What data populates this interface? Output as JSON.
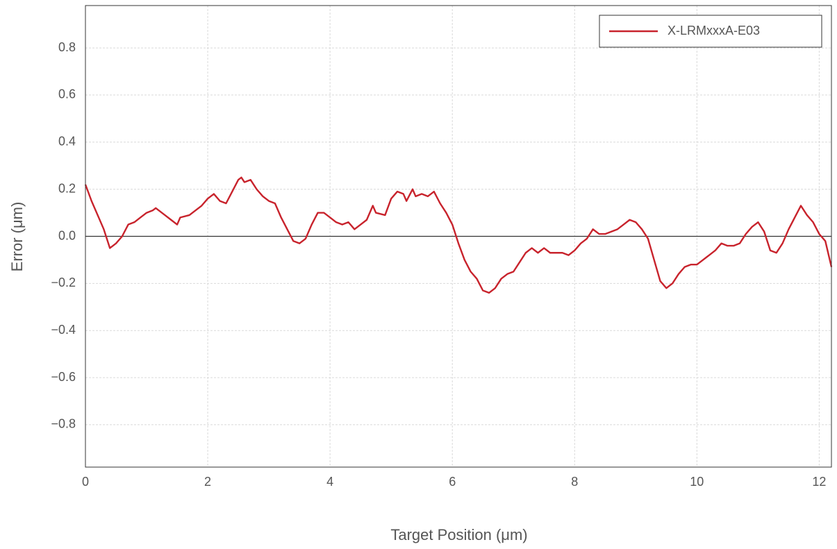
{
  "chart_data": {
    "type": "line",
    "xlabel": "Target Position (μm)",
    "ylabel": "Error (μm)",
    "x": [
      0,
      0.1,
      0.2,
      0.3,
      0.4,
      0.5,
      0.6,
      0.7,
      0.8,
      0.9,
      1.0,
      1.1,
      1.15,
      1.3,
      1.4,
      1.5,
      1.55,
      1.7,
      1.8,
      1.9,
      2.0,
      2.1,
      2.2,
      2.3,
      2.4,
      2.5,
      2.55,
      2.6,
      2.7,
      2.8,
      2.9,
      3.0,
      3.1,
      3.2,
      3.3,
      3.4,
      3.5,
      3.6,
      3.7,
      3.8,
      3.9,
      4.0,
      4.1,
      4.2,
      4.3,
      4.4,
      4.5,
      4.6,
      4.7,
      4.75,
      4.9,
      5.0,
      5.1,
      5.2,
      5.25,
      5.35,
      5.4,
      5.5,
      5.6,
      5.7,
      5.8,
      5.9,
      6.0,
      6.1,
      6.2,
      6.3,
      6.4,
      6.5,
      6.6,
      6.7,
      6.8,
      6.9,
      7.0,
      7.1,
      7.2,
      7.3,
      7.4,
      7.5,
      7.6,
      7.7,
      7.8,
      7.9,
      8.0,
      8.1,
      8.2,
      8.3,
      8.4,
      8.5,
      8.6,
      8.7,
      8.8,
      8.9,
      9.0,
      9.1,
      9.2,
      9.3,
      9.4,
      9.5,
      9.6,
      9.7,
      9.8,
      9.9,
      10.0,
      10.1,
      10.2,
      10.3,
      10.4,
      10.5,
      10.6,
      10.7,
      10.8,
      10.9,
      11.0,
      11.1,
      11.2,
      11.3,
      11.4,
      11.5,
      11.6,
      11.7,
      11.8,
      11.9,
      12.0,
      12.1,
      12.2
    ],
    "series": [
      {
        "name": "X-LRMxxxA-E03",
        "color": "#c8232c",
        "values": [
          0.22,
          0.15,
          0.09,
          0.03,
          -0.05,
          -0.03,
          0.0,
          0.05,
          0.06,
          0.08,
          0.1,
          0.11,
          0.12,
          0.09,
          0.07,
          0.05,
          0.08,
          0.09,
          0.11,
          0.13,
          0.16,
          0.18,
          0.15,
          0.14,
          0.19,
          0.24,
          0.25,
          0.23,
          0.24,
          0.2,
          0.17,
          0.15,
          0.14,
          0.08,
          0.03,
          -0.02,
          -0.03,
          -0.01,
          0.05,
          0.1,
          0.1,
          0.08,
          0.06,
          0.05,
          0.06,
          0.03,
          0.05,
          0.07,
          0.13,
          0.1,
          0.09,
          0.16,
          0.19,
          0.18,
          0.15,
          0.2,
          0.17,
          0.18,
          0.17,
          0.19,
          0.14,
          0.1,
          0.05,
          -0.03,
          -0.1,
          -0.15,
          -0.18,
          -0.23,
          -0.24,
          -0.22,
          -0.18,
          -0.16,
          -0.15,
          -0.11,
          -0.07,
          -0.05,
          -0.07,
          -0.05,
          -0.07,
          -0.07,
          -0.07,
          -0.08,
          -0.06,
          -0.03,
          -0.01,
          0.03,
          0.01,
          0.01,
          0.02,
          0.03,
          0.05,
          0.07,
          0.06,
          0.03,
          -0.01,
          -0.1,
          -0.19,
          -0.22,
          -0.2,
          -0.16,
          -0.13,
          -0.12,
          -0.12,
          -0.1,
          -0.08,
          -0.06,
          -0.03,
          -0.04,
          -0.04,
          -0.03,
          0.01,
          0.04,
          0.06,
          0.02,
          -0.06,
          -0.07,
          -0.03,
          0.03,
          0.08,
          0.13,
          0.09,
          0.06,
          0.01,
          -0.02,
          -0.13
        ]
      }
    ],
    "xlim": [
      0,
      12.2
    ],
    "ylim": [
      -0.98,
      0.98
    ],
    "xticks": [
      0,
      2,
      4,
      6,
      8,
      10,
      12
    ],
    "yticks": [
      {
        "value": -0.8,
        "label": "−0.8"
      },
      {
        "value": -0.6,
        "label": "−0.6"
      },
      {
        "value": -0.4,
        "label": "−0.4"
      },
      {
        "value": -0.2,
        "label": "−0.2"
      },
      {
        "value": 0,
        "label": "0.0"
      },
      0.2,
      0.4,
      0.6,
      0.8
    ],
    "grid": true,
    "zero_line": true,
    "legend": "upper right"
  }
}
